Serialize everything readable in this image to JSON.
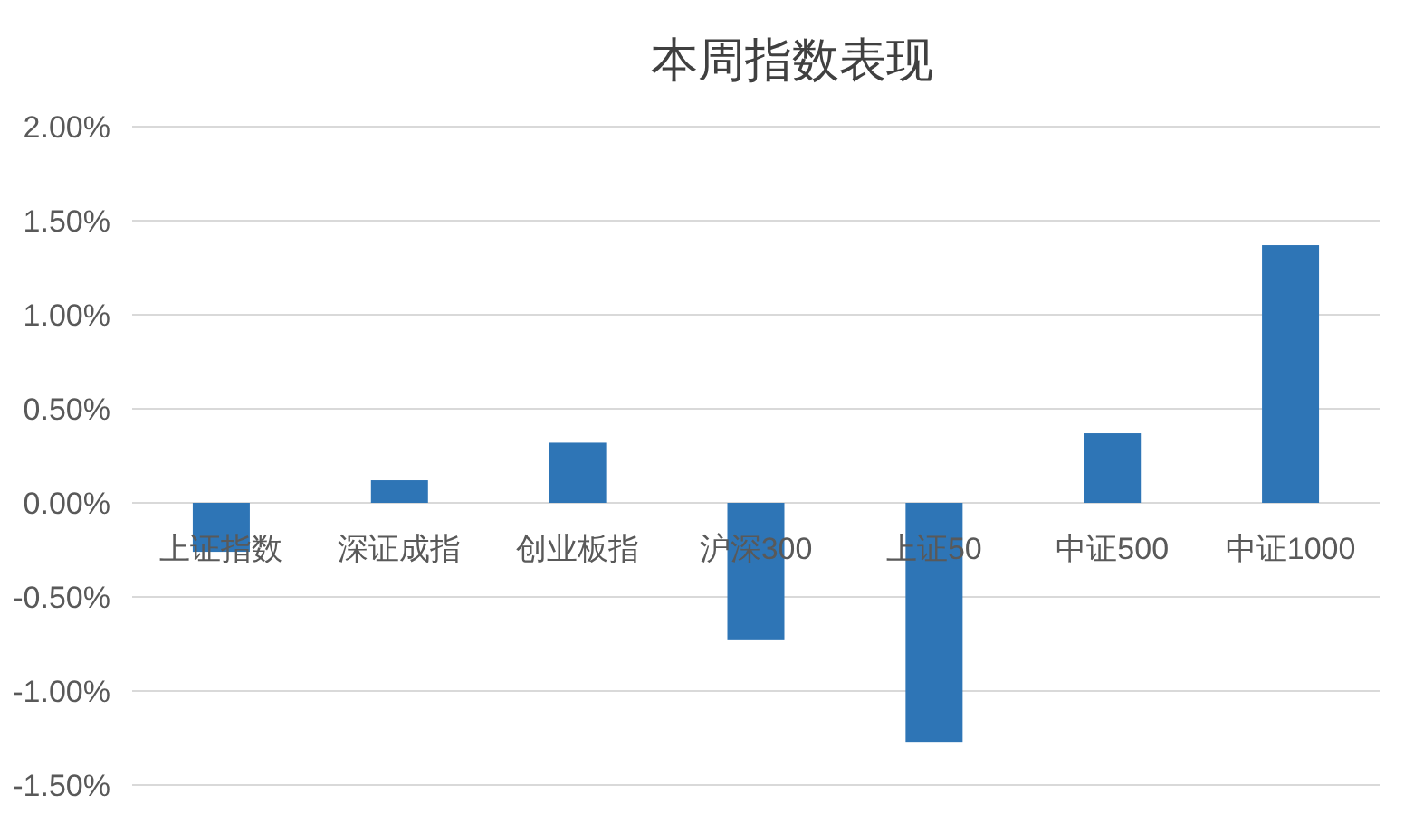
{
  "chart_data": {
    "type": "bar",
    "title": "本周指数表现",
    "categories": [
      "上证指数",
      "深证成指",
      "创业板指",
      "沪深300",
      "上证50",
      "中证500",
      "中证1000"
    ],
    "values": [
      -0.26,
      0.12,
      0.32,
      -0.73,
      -1.27,
      0.37,
      1.37
    ],
    "color": "#2e75b6",
    "ylim": [
      -1.5,
      2
    ],
    "yticks": [
      {
        "value": -1.5,
        "label": "-1.50%"
      },
      {
        "value": -1,
        "label": "-1.00%"
      },
      {
        "value": -0.5,
        "label": "-0.50%"
      },
      {
        "value": 0,
        "label": "0.00%"
      },
      {
        "value": 0.5,
        "label": "0.50%"
      },
      {
        "value": 1,
        "label": "1.00%"
      },
      {
        "value": 1.5,
        "label": "1.50%"
      },
      {
        "value": 2,
        "label": "2.00%"
      }
    ],
    "grid": "y"
  }
}
